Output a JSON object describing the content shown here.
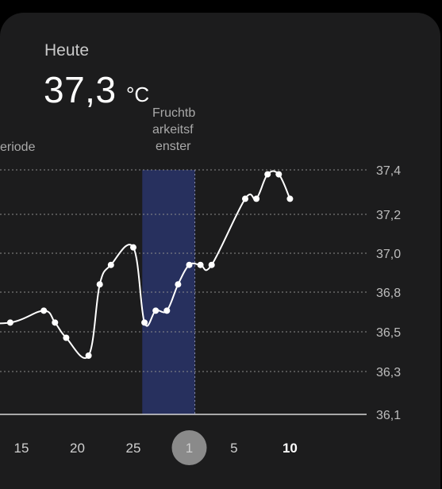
{
  "header": {
    "label": "Heute",
    "value": "37,3",
    "unit": "°C"
  },
  "phases": {
    "period_label": "eriode",
    "fertile_label": [
      "Fruchtb",
      "arkeitsf",
      "enster"
    ]
  },
  "colors": {
    "card_bg": "#1c1c1d",
    "period": "#4a1f2c",
    "fertile": "#27305e",
    "line": "#ffffff",
    "selected_day_bg": "#8a8a8a"
  },
  "chart_data": {
    "type": "line",
    "title": "",
    "xlabel": "",
    "ylabel": "",
    "ylim": [
      36.1,
      37.4
    ],
    "y_ticks": [
      "36,1",
      "36,3",
      "36,5",
      "36,8",
      "37,0",
      "37,2",
      "37,4"
    ],
    "x_ticks": [
      {
        "label": "15",
        "day": 15
      },
      {
        "label": "20",
        "day": 20
      },
      {
        "label": "25",
        "day": 25
      },
      {
        "label": "1",
        "day": 30,
        "selected": true
      },
      {
        "label": "5",
        "day": 34
      },
      {
        "label": "10",
        "day": 39,
        "bold": true
      }
    ],
    "series": [
      {
        "points": [
          {
            "day": 9.8,
            "temp": 36.57
          },
          {
            "day": 14,
            "temp": 36.57
          },
          {
            "day": 17,
            "temp": 36.66
          },
          {
            "day": 18,
            "temp": 36.57
          },
          {
            "day": 19,
            "temp": 36.47
          },
          {
            "day": 21,
            "temp": 36.38
          },
          {
            "day": 22,
            "temp": 36.84
          },
          {
            "day": 23,
            "temp": 36.94
          },
          {
            "day": 25,
            "temp": 37.03
          },
          {
            "day": 26,
            "temp": 36.57
          },
          {
            "day": 27,
            "temp": 36.66
          },
          {
            "day": 28,
            "temp": 36.66
          },
          {
            "day": 29,
            "temp": 36.84
          },
          {
            "day": 30,
            "temp": 36.94
          },
          {
            "day": 31,
            "temp": 36.94
          },
          {
            "day": 32,
            "temp": 36.94
          },
          {
            "day": 35,
            "temp": 37.27
          },
          {
            "day": 36,
            "temp": 37.27
          },
          {
            "day": 37,
            "temp": 37.38
          },
          {
            "day": 38,
            "temp": 37.38
          },
          {
            "day": 39,
            "temp": 37.27
          }
        ]
      }
    ],
    "bands": [
      {
        "kind": "period",
        "from_day": 9.8,
        "to_day": 13
      },
      {
        "kind": "fertile",
        "from_day": 25.8,
        "to_day": 30.5
      }
    ]
  }
}
